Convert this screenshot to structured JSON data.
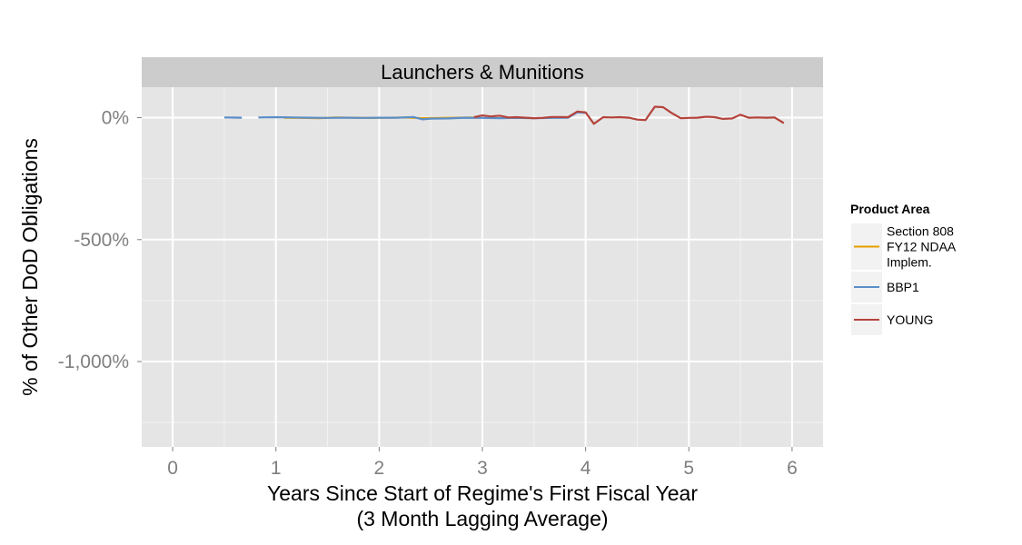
{
  "chart_data": {
    "type": "line",
    "facet_title": "Launchers & Munitions",
    "xlabel_line1": "Years Since Start of Regime's First Fiscal Year",
    "xlabel_line2": "(3 Month Lagging Average)",
    "ylabel": "% of Other DoD Obligations",
    "xlim": [
      -0.3,
      6.3
    ],
    "ylim": [
      -1350,
      125
    ],
    "x_ticks": [
      {
        "value": 0,
        "label": "0"
      },
      {
        "value": 1,
        "label": "1"
      },
      {
        "value": 2,
        "label": "2"
      },
      {
        "value": 3,
        "label": "3"
      },
      {
        "value": 4,
        "label": "4"
      },
      {
        "value": 5,
        "label": "5"
      },
      {
        "value": 6,
        "label": "6"
      }
    ],
    "y_ticks": [
      {
        "value": 0,
        "label": "0%"
      },
      {
        "value": -500,
        "label": "-500%"
      },
      {
        "value": -1000,
        "label": "-1,000%"
      }
    ],
    "grid": true,
    "legend_position": "right",
    "legend_title": "Product Area",
    "series": [
      {
        "name": "Section 808 FY12 NDAA Implem.",
        "name_lines": [
          "Section 808",
          "FY12 NDAA",
          "Implem."
        ],
        "color": "#E69F00",
        "segments": [
          [
            [
              1.08,
              0
            ],
            [
              1.25,
              -1
            ],
            [
              1.42,
              -2
            ],
            [
              1.58,
              1
            ],
            [
              1.75,
              0
            ],
            [
              1.92,
              -1
            ],
            [
              2.08,
              0
            ],
            [
              2.25,
              1
            ],
            [
              2.42,
              -2
            ],
            [
              2.58,
              -1
            ],
            [
              2.75,
              0
            ],
            [
              2.92,
              1
            ]
          ]
        ]
      },
      {
        "name": "BBP1",
        "name_lines": [
          "BBP1"
        ],
        "color": "#5B8FC9",
        "segments": [
          [
            [
              0.5,
              1
            ],
            [
              0.67,
              0
            ]
          ],
          [
            [
              0.83,
              1
            ],
            [
              1.0,
              2
            ],
            [
              1.17,
              1
            ],
            [
              1.33,
              0
            ],
            [
              1.5,
              -1
            ],
            [
              1.67,
              0
            ],
            [
              1.83,
              -1
            ],
            [
              2.0,
              0
            ],
            [
              2.17,
              0
            ],
            [
              2.33,
              3
            ],
            [
              2.42,
              -7
            ],
            [
              2.5,
              -4
            ],
            [
              2.67,
              -3
            ],
            [
              2.83,
              0
            ],
            [
              3.0,
              -1
            ],
            [
              3.17,
              -2
            ],
            [
              3.33,
              -1
            ],
            [
              3.5,
              -2
            ],
            [
              3.67,
              -1
            ],
            [
              3.83,
              0
            ],
            [
              3.92,
              22
            ],
            [
              4.0,
              20
            ]
          ]
        ]
      },
      {
        "name": "YOUNG",
        "name_lines": [
          "YOUNG"
        ],
        "color": "#B5433B",
        "segments": [
          [
            [
              2.92,
              2
            ],
            [
              3.0,
              9
            ],
            [
              3.08,
              5
            ],
            [
              3.17,
              8
            ],
            [
              3.25,
              1
            ],
            [
              3.33,
              2
            ],
            [
              3.42,
              0
            ],
            [
              3.5,
              -2
            ],
            [
              3.58,
              -1
            ],
            [
              3.67,
              3
            ],
            [
              3.75,
              3
            ],
            [
              3.83,
              2
            ],
            [
              3.92,
              25
            ],
            [
              4.0,
              22
            ],
            [
              4.08,
              -25
            ],
            [
              4.17,
              2
            ],
            [
              4.25,
              1
            ],
            [
              4.33,
              2
            ],
            [
              4.42,
              0
            ],
            [
              4.5,
              -8
            ],
            [
              4.58,
              -10
            ],
            [
              4.67,
              45
            ],
            [
              4.75,
              43
            ],
            [
              4.83,
              20
            ],
            [
              4.92,
              -2
            ],
            [
              5.0,
              -1
            ],
            [
              5.08,
              0
            ],
            [
              5.17,
              4
            ],
            [
              5.25,
              2
            ],
            [
              5.33,
              -5
            ],
            [
              5.42,
              -3
            ],
            [
              5.5,
              12
            ],
            [
              5.58,
              0
            ],
            [
              5.67,
              1
            ],
            [
              5.75,
              0
            ],
            [
              5.83,
              1
            ],
            [
              5.92,
              -22
            ]
          ]
        ]
      }
    ]
  }
}
